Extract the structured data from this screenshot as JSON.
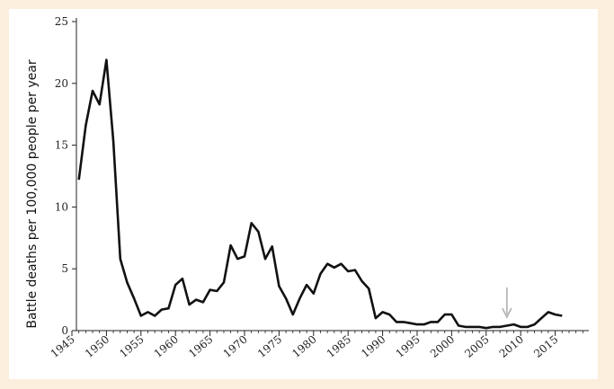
{
  "chart_data": {
    "type": "line",
    "title": "",
    "xlabel": "",
    "ylabel": "Battle deaths per 100,000 people per year",
    "xlim": [
      1945,
      2020
    ],
    "ylim": [
      0,
      25
    ],
    "x_ticks": [
      "1945",
      "1950",
      "1955",
      "1960",
      "1965",
      "1970",
      "1975",
      "1980",
      "1985",
      "1990",
      "1995",
      "2000",
      "2005",
      "2010",
      "2015"
    ],
    "y_ticks": [
      "0",
      "5",
      "10",
      "15",
      "20",
      "25"
    ],
    "grid": false,
    "line_color": "#111111",
    "annotation": {
      "type": "arrow",
      "x": 2008,
      "color": "#b0b0b0"
    },
    "series": [
      {
        "x": [
          1946,
          1947,
          1948,
          1949,
          1950,
          1951,
          1952,
          1953,
          1954,
          1955,
          1956,
          1957,
          1958,
          1959,
          1960,
          1961,
          1962,
          1963,
          1964,
          1965,
          1966,
          1967,
          1968,
          1969,
          1970,
          1971,
          1972,
          1973,
          1974,
          1975,
          1976,
          1977,
          1978,
          1979,
          1980,
          1981,
          1982,
          1983,
          1984,
          1985,
          1986,
          1987,
          1988,
          1989,
          1990,
          1991,
          1992,
          1993,
          1994,
          1995,
          1996,
          1997,
          1998,
          1999,
          2000,
          2001,
          2002,
          2003,
          2004,
          2005,
          2006,
          2007,
          2008,
          2009,
          2010,
          2011,
          2012,
          2013,
          2014,
          2015,
          2016
        ],
        "y": [
          12.2,
          16.6,
          19.4,
          18.3,
          21.9,
          15.3,
          5.8,
          3.9,
          2.6,
          1.2,
          1.5,
          1.2,
          1.7,
          1.8,
          3.7,
          4.2,
          2.1,
          2.5,
          2.3,
          3.3,
          3.2,
          3.9,
          6.9,
          5.8,
          6.0,
          8.7,
          8.0,
          5.8,
          6.8,
          3.6,
          2.6,
          1.3,
          2.6,
          3.7,
          3.0,
          4.6,
          5.4,
          5.1,
          5.4,
          4.8,
          4.9,
          4.0,
          3.4,
          1.0,
          1.5,
          1.3,
          0.7,
          0.7,
          0.6,
          0.5,
          0.5,
          0.7,
          0.7,
          1.3,
          1.3,
          0.4,
          0.3,
          0.3,
          0.3,
          0.2,
          0.3,
          0.3,
          0.4,
          0.5,
          0.3,
          0.3,
          0.5,
          1.0,
          1.5,
          1.3,
          1.2
        ]
      }
    ]
  }
}
